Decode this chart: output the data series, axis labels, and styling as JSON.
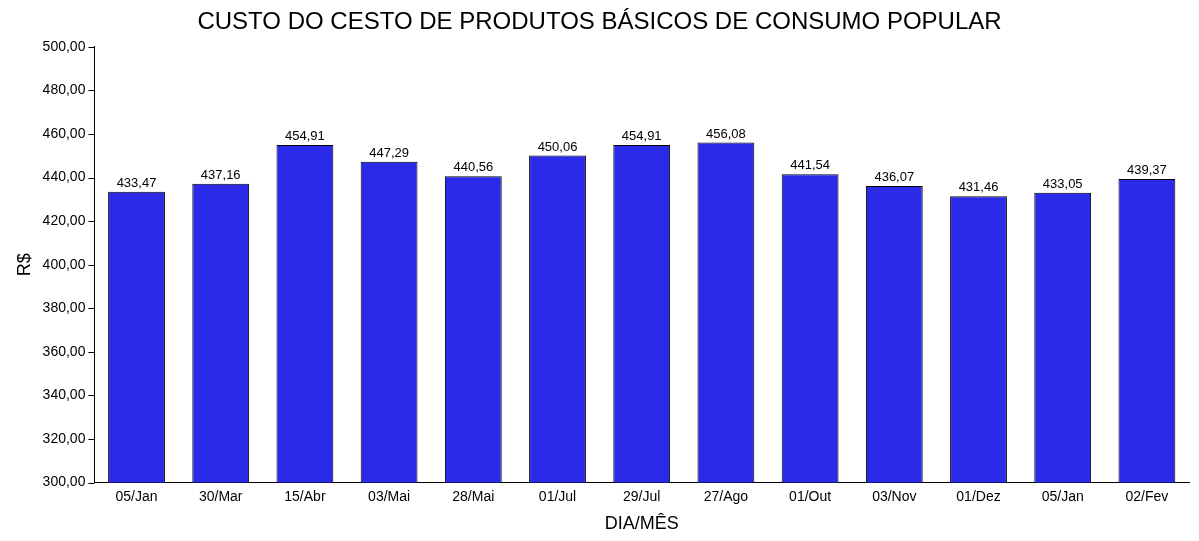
{
  "chart_data": {
    "type": "bar",
    "title": "CUSTO DO CESTO DE PRODUTOS BÁSICOS DE CONSUMO POPULAR",
    "xlabel": "DIA/MÊS",
    "ylabel": "R$",
    "categories": [
      "05/Jan",
      "30/Mar",
      "15/Abr",
      "03/Mai",
      "28/Mai",
      "01/Jul",
      "29/Jul",
      "27/Ago",
      "01/Out",
      "03/Nov",
      "01/Dez",
      "05/Jan",
      "02/Fev"
    ],
    "values": [
      433.47,
      437.16,
      454.91,
      447.29,
      440.56,
      450.06,
      454.91,
      456.08,
      441.54,
      436.07,
      431.46,
      433.05,
      439.37
    ],
    "value_labels": [
      "433,47",
      "437,16",
      "454,91",
      "447,29",
      "440,56",
      "450,06",
      "454,91",
      "456,08",
      "441,54",
      "436,07",
      "431,46",
      "433,05",
      "439,37"
    ],
    "color": "#2a2ae8",
    "ylim": [
      300,
      500
    ],
    "yticks": [
      {
        "value": 300,
        "label": "300,00"
      },
      {
        "value": 320,
        "label": "320,00"
      },
      {
        "value": 340,
        "label": "340,00"
      },
      {
        "value": 360,
        "label": "360,00"
      },
      {
        "value": 380,
        "label": "380,00"
      },
      {
        "value": 400,
        "label": "400,00"
      },
      {
        "value": 420,
        "label": "420,00"
      },
      {
        "value": 440,
        "label": "440,00"
      },
      {
        "value": 460,
        "label": "460,00"
      },
      {
        "value": 480,
        "label": "480,00"
      },
      {
        "value": 500,
        "label": "500,00"
      }
    ],
    "grid": false,
    "legend": false
  }
}
